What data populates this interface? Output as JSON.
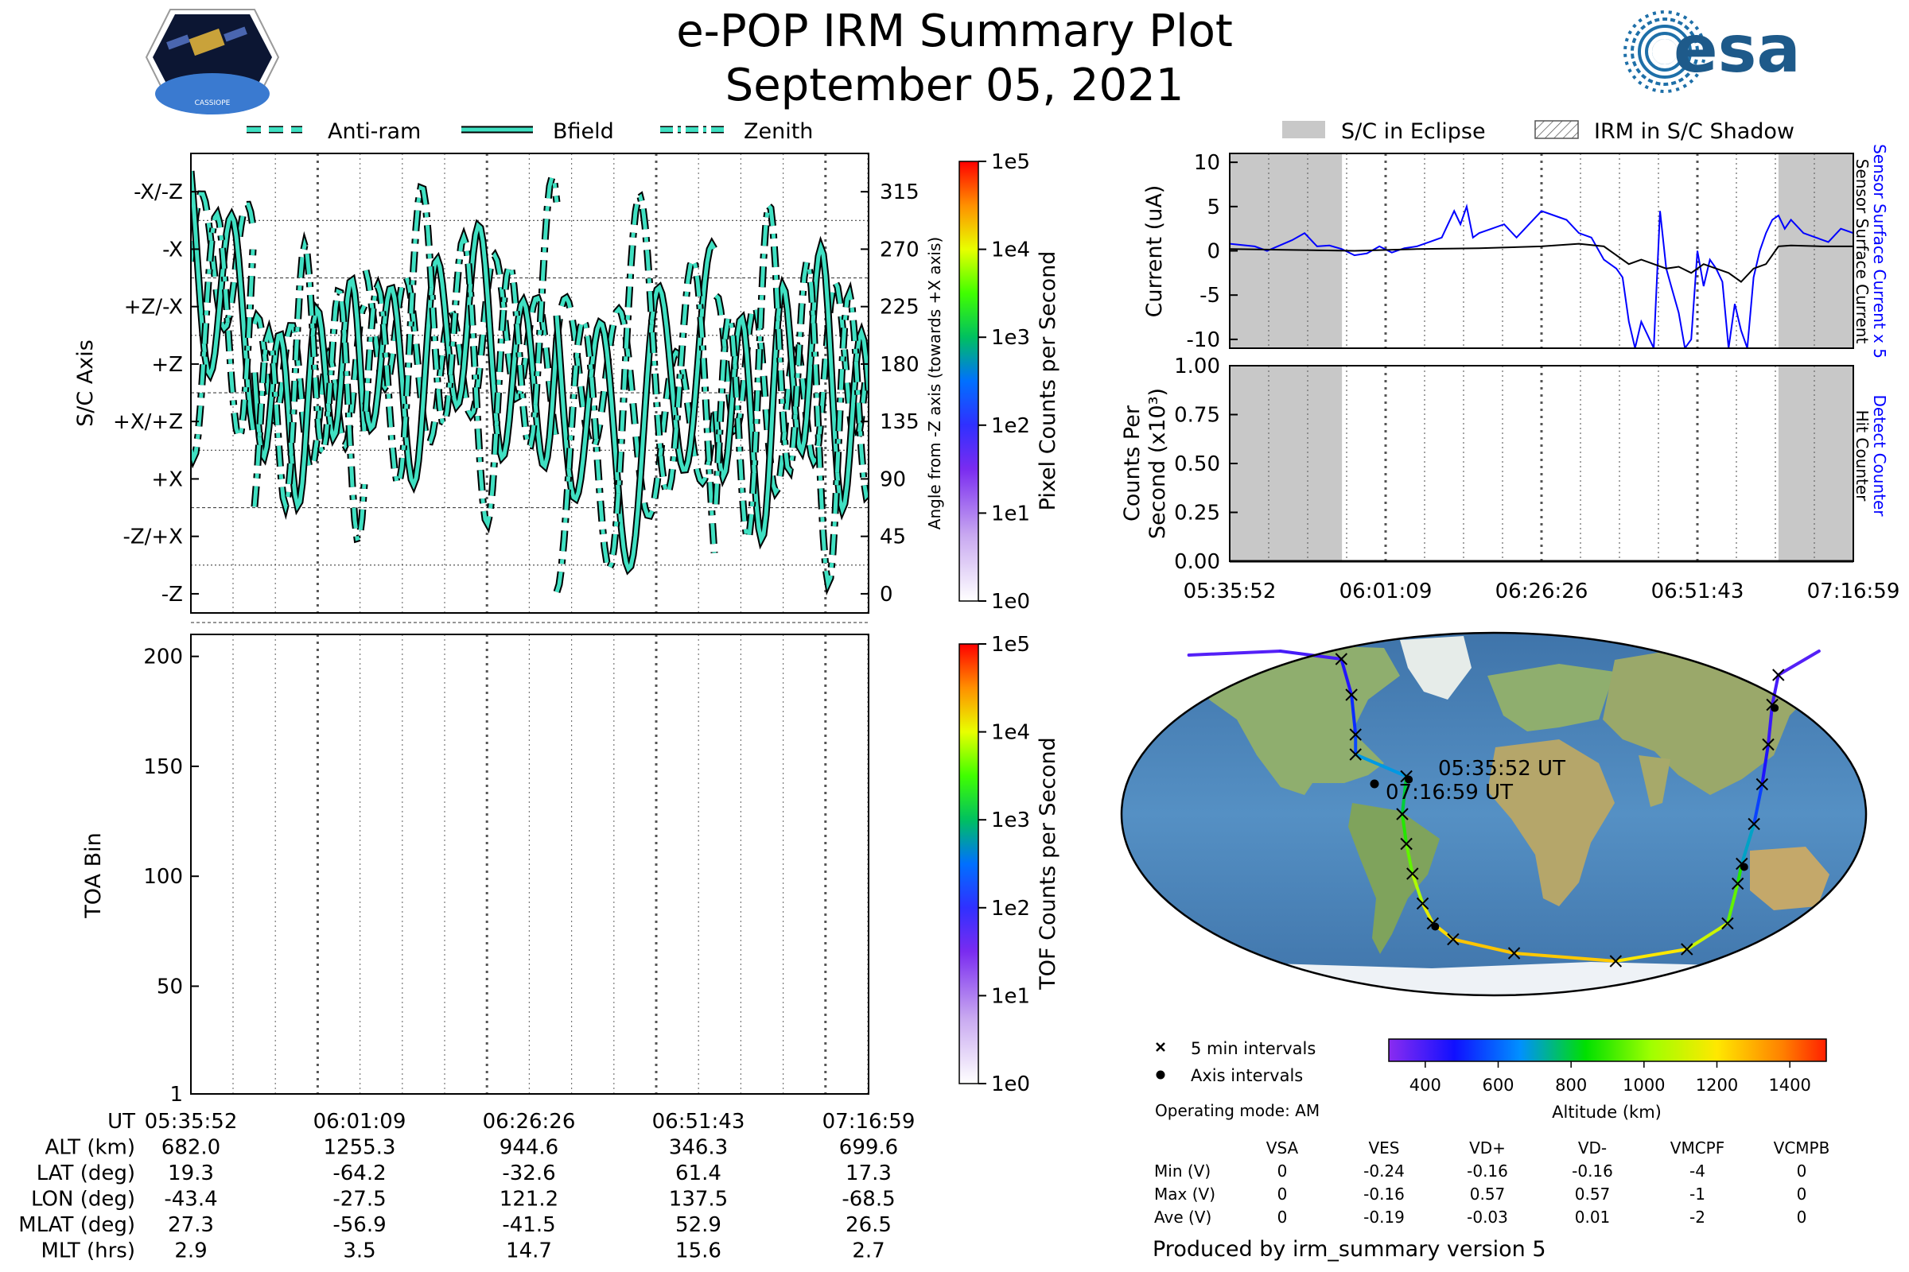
{
  "header": {
    "title": "e-POP IRM Summary Plot",
    "date": "September 05, 2021",
    "logo_left_text": "CASSIOPE",
    "logo_right_text": "esa"
  },
  "colors": {
    "trace_fill": "#3fe0c2",
    "trace_edge": "#000000",
    "eclipse": "#c8c8c8",
    "current_blue": "#0000ff",
    "current_black": "#000000",
    "map_land": "#8fae6e",
    "map_ocean": "#4a7fb5",
    "map_ice": "#eef2f6"
  },
  "legend_top_left": {
    "items": [
      {
        "label": "Anti-ram",
        "style": "dashed"
      },
      {
        "label": "Bfield",
        "style": "solid"
      },
      {
        "label": "Zenith",
        "style": "dashdot"
      }
    ]
  },
  "legend_top_right": {
    "items": [
      {
        "label": "S/C in Eclipse",
        "style": "gray"
      },
      {
        "label": "IRM in S/C Shadow",
        "style": "hatch"
      }
    ]
  },
  "chart_data": [
    {
      "id": "attitude",
      "type": "line",
      "ylabel": "S/C Axis",
      "ylabel_right": "Angle from -Z axis (towards +X axis)",
      "y_ticks_left": [
        "-X/-Z",
        "-X",
        "+Z/-X",
        "+Z",
        "+X/+Z",
        "+X",
        "-Z/+X",
        "-Z"
      ],
      "y_ticks_right": [
        "315",
        "270",
        "225",
        "180",
        "135",
        "90",
        "45",
        "0"
      ],
      "ylim": [
        -15,
        345
      ],
      "x_ticks": [
        "05:35:52",
        "06:01:09",
        "06:26:26",
        "06:51:43",
        "07:16:59"
      ],
      "series": [
        {
          "name": "Anti-ram",
          "style": "dashed"
        },
        {
          "name": "Bfield",
          "style": "solid"
        },
        {
          "name": "Zenith",
          "style": "dashdot"
        }
      ],
      "colorbar": {
        "label": "Pixel Counts per Second",
        "ticks": [
          "1e0",
          "1e1",
          "1e2",
          "1e3",
          "1e4",
          "1e5"
        ]
      }
    },
    {
      "id": "toa",
      "type": "heatmap",
      "ylabel": "TOA Bin",
      "y_ticks": [
        "1",
        "50",
        "100",
        "150",
        "200"
      ],
      "ylim": [
        1,
        210
      ],
      "values": [],
      "colorbar": {
        "label": "TOF Counts per Second",
        "ticks": [
          "1e0",
          "1e1",
          "1e2",
          "1e3",
          "1e4",
          "1e5"
        ]
      }
    },
    {
      "id": "current",
      "type": "line",
      "ylabel": "Current (uA)",
      "ylim": [
        -11,
        11
      ],
      "y_ticks": [
        "10",
        "5",
        "0",
        "-5",
        "-10"
      ],
      "right_labels": [
        "Sensor Surface Current x 5",
        "Sensor Surface Current"
      ],
      "eclipse_intervals": [
        [
          0,
          0.18
        ],
        [
          0.88,
          1.0
        ]
      ],
      "series": [
        {
          "name": "Sensor Surface Current x 5",
          "color": "#0000ff",
          "x": [
            0.0,
            0.04,
            0.06,
            0.1,
            0.12,
            0.14,
            0.16,
            0.18,
            0.2,
            0.22,
            0.24,
            0.26,
            0.28,
            0.3,
            0.32,
            0.34,
            0.36,
            0.37,
            0.38,
            0.39,
            0.4,
            0.42,
            0.44,
            0.46,
            0.48,
            0.5,
            0.52,
            0.54,
            0.56,
            0.58,
            0.6,
            0.62,
            0.63,
            0.64,
            0.65,
            0.66,
            0.67,
            0.68,
            0.69,
            0.7,
            0.71,
            0.72,
            0.73,
            0.74,
            0.75,
            0.76,
            0.77,
            0.78,
            0.79,
            0.8,
            0.81,
            0.82,
            0.83,
            0.84,
            0.85,
            0.86,
            0.87,
            0.88,
            0.89,
            0.9,
            0.92,
            0.94,
            0.96,
            0.98,
            1.0
          ],
          "y": [
            0.8,
            0.5,
            0.0,
            1.2,
            2.0,
            0.5,
            0.6,
            0.2,
            -0.5,
            -0.3,
            0.5,
            -0.2,
            0.3,
            0.5,
            1.0,
            1.5,
            4.5,
            3.0,
            5.0,
            1.5,
            2.0,
            2.5,
            3.0,
            1.5,
            3.0,
            4.5,
            4.0,
            3.5,
            2.0,
            1.5,
            -1.0,
            -2.0,
            -3.0,
            -8.0,
            -11.0,
            -8.0,
            -9.5,
            -11.0,
            4.5,
            -2.0,
            -4.5,
            -7.0,
            -11.0,
            -10.0,
            0.0,
            -4.0,
            -1.0,
            -2.0,
            -3.5,
            -11.0,
            -6.0,
            -9.0,
            -11.0,
            -3.0,
            0.0,
            2.0,
            3.5,
            4.0,
            2.5,
            3.5,
            2.0,
            1.5,
            1.0,
            2.5,
            2.0
          ]
        },
        {
          "name": "Sensor Surface Current",
          "color": "#000000",
          "x": [
            0.0,
            0.1,
            0.2,
            0.3,
            0.4,
            0.5,
            0.56,
            0.6,
            0.62,
            0.64,
            0.66,
            0.68,
            0.7,
            0.72,
            0.74,
            0.76,
            0.78,
            0.8,
            0.82,
            0.84,
            0.86,
            0.88,
            0.9,
            0.95,
            1.0
          ],
          "y": [
            0.2,
            0.1,
            0.0,
            0.2,
            0.3,
            0.5,
            0.8,
            0.5,
            -0.5,
            -1.5,
            -1.0,
            -1.5,
            -2.0,
            -1.8,
            -2.5,
            -1.5,
            -2.0,
            -2.5,
            -3.5,
            -2.0,
            -1.5,
            0.5,
            0.6,
            0.5,
            0.5
          ]
        }
      ]
    },
    {
      "id": "counts",
      "type": "line",
      "ylabel_line1": "Counts Per",
      "ylabel_line2": "Second (x10³)",
      "ylim": [
        0,
        1.0
      ],
      "y_ticks": [
        "1.00",
        "0.75",
        "0.50",
        "0.25",
        "0.00"
      ],
      "right_labels": [
        "Detect Counter",
        "Hit Counter"
      ],
      "eclipse_intervals": [
        [
          0,
          0.18
        ],
        [
          0.88,
          1.0
        ]
      ],
      "series": [
        {
          "name": "Detect Counter",
          "color": "#0000ff",
          "x": [
            0,
            1
          ],
          "y": [
            0,
            0
          ]
        },
        {
          "name": "Hit Counter",
          "color": "#000000",
          "x": [
            0,
            1
          ],
          "y": [
            0,
            0
          ]
        }
      ],
      "x_ticks": [
        "05:35:52",
        "06:01:09",
        "06:26:26",
        "06:51:43",
        "07:16:59"
      ]
    },
    {
      "id": "orbit-map",
      "type": "scatter",
      "start_label": "05:35:52 UT",
      "end_label": "07:16:59 UT",
      "altitude_colorbar": {
        "label": "Altitude (km)",
        "ticks": [
          "400",
          "600",
          "800",
          "1000",
          "1200",
          "1400"
        ],
        "range": [
          300,
          1500
        ]
      },
      "track": [
        {
          "lon": -150,
          "lat": 80,
          "alt": 360
        },
        {
          "lon": -105,
          "lat": 82,
          "alt": 380
        },
        {
          "lon": -75,
          "lat": 78,
          "alt": 400
        },
        {
          "lon": -70,
          "lat": 60,
          "alt": 450
        },
        {
          "lon": -68,
          "lat": 40,
          "alt": 520
        },
        {
          "lon": -68,
          "lat": 30,
          "alt": 560
        },
        {
          "lon": -43,
          "lat": 19,
          "alt": 680
        },
        {
          "lon": -45,
          "lat": 0,
          "alt": 800
        },
        {
          "lon": -43,
          "lat": -15,
          "alt": 880
        },
        {
          "lon": -40,
          "lat": -30,
          "alt": 950
        },
        {
          "lon": -35,
          "lat": -45,
          "alt": 1050
        },
        {
          "lon": -30,
          "lat": -55,
          "alt": 1150
        },
        {
          "lon": -20,
          "lat": -63,
          "alt": 1220
        },
        {
          "lon": 10,
          "lat": -70,
          "alt": 1260
        },
        {
          "lon": 60,
          "lat": -74,
          "alt": 1255
        },
        {
          "lon": 95,
          "lat": -68,
          "alt": 1200
        },
        {
          "lon": 115,
          "lat": -55,
          "alt": 1100
        },
        {
          "lon": 120,
          "lat": -35,
          "alt": 950
        },
        {
          "lon": 122,
          "lat": -25,
          "alt": 880
        },
        {
          "lon": 128,
          "lat": -5,
          "alt": 700
        },
        {
          "lon": 132,
          "lat": 15,
          "alt": 550
        },
        {
          "lon": 135,
          "lat": 35,
          "alt": 460
        },
        {
          "lon": 137,
          "lat": 55,
          "alt": 420
        },
        {
          "lon": 140,
          "lat": 70,
          "alt": 400
        },
        {
          "lon": 160,
          "lat": 82,
          "alt": 380
        }
      ],
      "legend": [
        "5 min intervals",
        "Axis intervals"
      ],
      "operating_mode": "Operating mode: AM"
    }
  ],
  "bottom_table": {
    "rows": [
      {
        "label": "UT",
        "values": [
          "05:35:52",
          "06:01:09",
          "06:26:26",
          "06:51:43",
          "07:16:59"
        ]
      },
      {
        "label": "ALT (km)",
        "values": [
          "682.0",
          "1255.3",
          "944.6",
          "346.3",
          "699.6"
        ]
      },
      {
        "label": "LAT (deg)",
        "values": [
          "19.3",
          "-64.2",
          "-32.6",
          "61.4",
          "17.3"
        ]
      },
      {
        "label": "LON (deg)",
        "values": [
          "-43.4",
          "-27.5",
          "121.2",
          "137.5",
          "-68.5"
        ]
      },
      {
        "label": "MLAT (deg)",
        "values": [
          "27.3",
          "-56.9",
          "-41.5",
          "52.9",
          "26.5"
        ]
      },
      {
        "label": "MLT (hrs)",
        "values": [
          "2.9",
          "3.5",
          "14.7",
          "15.6",
          "2.7"
        ]
      }
    ]
  },
  "voltage_table": {
    "columns": [
      "VSA",
      "VES",
      "VD+",
      "VD-",
      "VMCPF",
      "VCMPB"
    ],
    "rows": [
      {
        "label": "Min (V)",
        "values": [
          "0",
          "-0.24",
          "-0.16",
          "-0.16",
          "-4",
          "0"
        ]
      },
      {
        "label": "Max (V)",
        "values": [
          "0",
          "-0.16",
          "0.57",
          "0.57",
          "-1",
          "0"
        ]
      },
      {
        "label": "Ave (V)",
        "values": [
          "0",
          "-0.19",
          "-0.03",
          "0.01",
          "-2",
          "0"
        ]
      }
    ]
  },
  "footer": {
    "produced_by": "Produced by irm_summary version 5"
  }
}
